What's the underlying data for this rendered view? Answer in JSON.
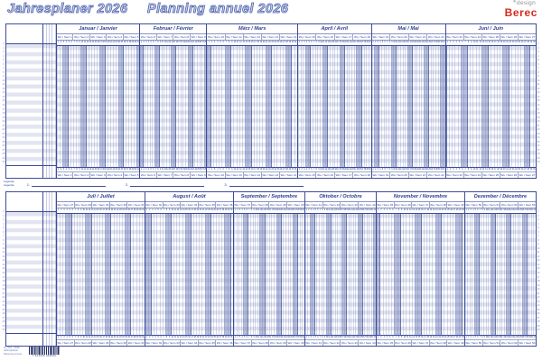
{
  "page": {
    "title_de": "Jahresplaner 2026",
    "title_fr": "Planning annuel 2026"
  },
  "logo": {
    "design_label": "design",
    "brand": "Berec",
    "flower_icon": "✳"
  },
  "planner": {
    "year": 2026,
    "week_label_prefix": "Wo / Sem",
    "rows_per_half": 30,
    "row_numbers_shown": true,
    "halves": [
      {
        "name": "first-half",
        "months": [
          {
            "label": "Januar / Janvier",
            "month_index": 0,
            "days": 31,
            "weeks": [
              1,
              2,
              3,
              4,
              5
            ]
          },
          {
            "label": "Februar / Février",
            "month_index": 1,
            "days": 28,
            "weeks": [
              6,
              7,
              8,
              9
            ]
          },
          {
            "label": "März / Mars",
            "month_index": 2,
            "days": 31,
            "weeks": [
              10,
              11,
              12,
              13,
              14
            ]
          },
          {
            "label": "April / Avril",
            "month_index": 3,
            "days": 30,
            "weeks": [
              15,
              16,
              17,
              18
            ]
          },
          {
            "label": "Mai / Mai",
            "month_index": 4,
            "days": 31,
            "weeks": [
              19,
              20,
              21,
              22
            ]
          },
          {
            "label": "Juni / Juin",
            "month_index": 5,
            "days": 30,
            "weeks": [
              23,
              24,
              25,
              26,
              27
            ]
          }
        ]
      },
      {
        "name": "second-half",
        "months": [
          {
            "label": "Juli / Juillet",
            "month_index": 6,
            "days": 31,
            "weeks": [
              27,
              28,
              29,
              30,
              31
            ]
          },
          {
            "label": "August / Août",
            "month_index": 7,
            "days": 31,
            "weeks": [
              32,
              33,
              34,
              35,
              36
            ]
          },
          {
            "label": "September / Septembre",
            "month_index": 8,
            "days": 30,
            "weeks": [
              37,
              38,
              39,
              40
            ]
          },
          {
            "label": "Oktober / Octobre",
            "month_index": 9,
            "days": 31,
            "weeks": [
              41,
              42,
              43,
              44
            ]
          },
          {
            "label": "November / Novembre",
            "month_index": 10,
            "days": 30,
            "weeks": [
              45,
              46,
              47,
              48,
              49
            ]
          },
          {
            "label": "Dezember / Décembre",
            "month_index": 11,
            "days": 31,
            "weeks": [
              50,
              51,
              52,
              53
            ]
          }
        ]
      }
    ]
  },
  "legend": {
    "label": "Legende\nLégende",
    "items": [
      "1.",
      "2.",
      "3."
    ]
  },
  "footer": {
    "info": "Nr. 601 · 2026\nJahresplaner\nPlanning annuel",
    "barcode_number": "7 612026 000000"
  },
  "colors": {
    "navy_border": "#3d4d99",
    "header_text": "#2d3f8e",
    "row_fill": "#e2e5f1",
    "weekend_fill": "#aab3d8",
    "title_outline": "#4f63ac",
    "brand_red": "#d8281f",
    "logo_grey": "#8f8f8f"
  }
}
